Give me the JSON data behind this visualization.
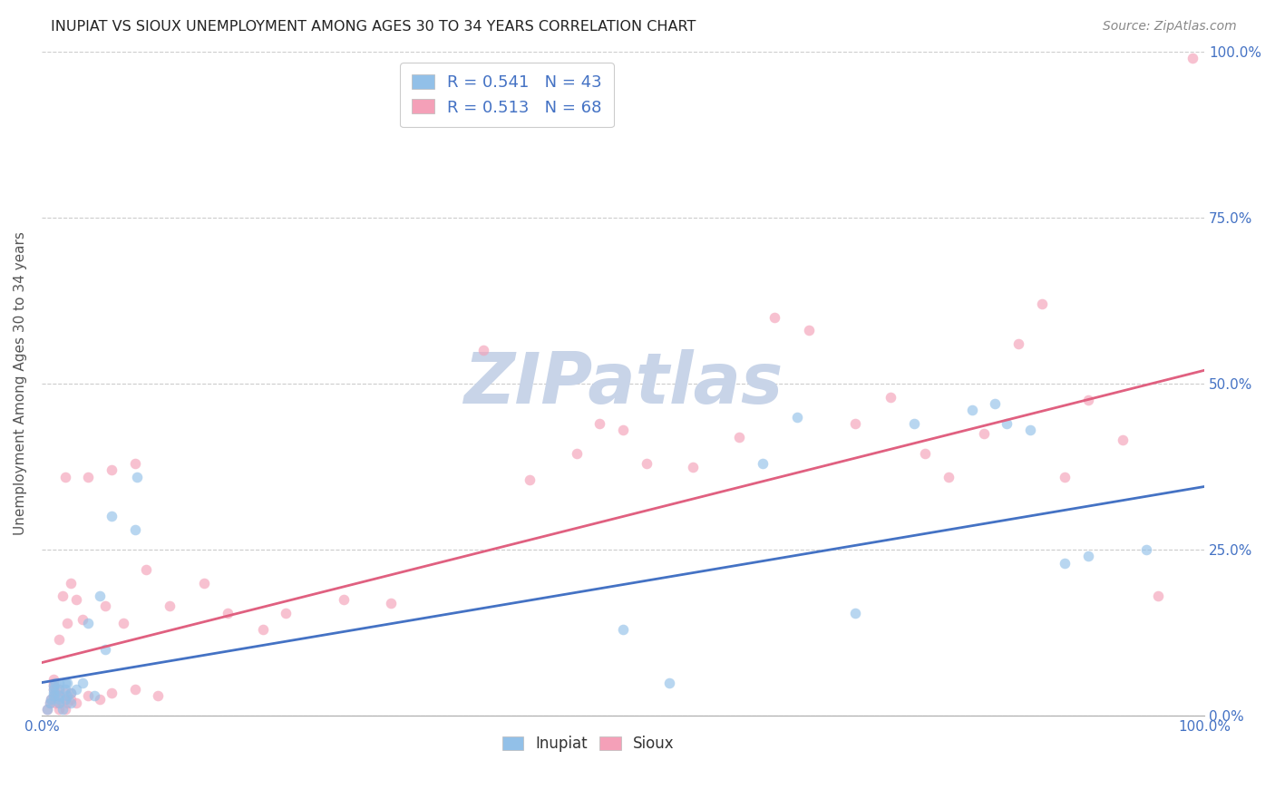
{
  "title": "INUPIAT VS SIOUX UNEMPLOYMENT AMONG AGES 30 TO 34 YEARS CORRELATION CHART",
  "source": "Source: ZipAtlas.com",
  "ylabel": "Unemployment Among Ages 30 to 34 years",
  "xlim": [
    0,
    1
  ],
  "ylim": [
    0,
    1
  ],
  "xtick_vals": [
    0,
    1.0
  ],
  "xtick_labels": [
    "0.0%",
    "100.0%"
  ],
  "ytick_vals": [
    0,
    0.25,
    0.5,
    0.75,
    1.0
  ],
  "right_ytick_labels": [
    "0.0%",
    "25.0%",
    "50.0%",
    "75.0%",
    "100.0%"
  ],
  "inupiat_color": "#92c0e8",
  "sioux_color": "#f4a0b8",
  "line_inupiat_color": "#4472c4",
  "line_sioux_color": "#e06080",
  "legend_label_inupiat": "R = 0.541   N = 43",
  "legend_label_sioux": "R = 0.513   N = 68",
  "watermark_text": "ZIPatlas",
  "watermark_color": "#c8d4e8",
  "grid_color": "#cccccc",
  "background_color": "#ffffff",
  "title_color": "#222222",
  "source_color": "#888888",
  "ylabel_color": "#555555",
  "right_tick_color": "#4472c4",
  "xtick_color": "#4472c4",
  "legend_text_color": "#4472c4",
  "bottom_legend_color": "#333333",
  "marker_size": 70,
  "marker_alpha": 0.65,
  "inupiat_x": [
    0.005,
    0.007,
    0.008,
    0.01,
    0.01,
    0.01,
    0.01,
    0.012,
    0.015,
    0.015,
    0.015,
    0.015,
    0.015,
    0.018,
    0.02,
    0.02,
    0.02,
    0.022,
    0.022,
    0.025,
    0.025,
    0.03,
    0.035,
    0.04,
    0.045,
    0.05,
    0.055,
    0.06,
    0.08,
    0.082,
    0.5,
    0.54,
    0.62,
    0.65,
    0.7,
    0.75,
    0.8,
    0.82,
    0.83,
    0.85,
    0.88,
    0.9,
    0.95
  ],
  "inupiat_y": [
    0.01,
    0.02,
    0.025,
    0.03,
    0.035,
    0.04,
    0.045,
    0.05,
    0.02,
    0.025,
    0.03,
    0.04,
    0.05,
    0.01,
    0.025,
    0.04,
    0.05,
    0.03,
    0.05,
    0.02,
    0.035,
    0.04,
    0.05,
    0.14,
    0.03,
    0.18,
    0.1,
    0.3,
    0.28,
    0.36,
    0.13,
    0.05,
    0.38,
    0.45,
    0.155,
    0.44,
    0.46,
    0.47,
    0.44,
    0.43,
    0.23,
    0.24,
    0.25
  ],
  "sioux_x": [
    0.005,
    0.007,
    0.008,
    0.01,
    0.01,
    0.01,
    0.01,
    0.01,
    0.012,
    0.012,
    0.015,
    0.015,
    0.015,
    0.015,
    0.015,
    0.018,
    0.02,
    0.02,
    0.02,
    0.02,
    0.022,
    0.022,
    0.025,
    0.025,
    0.025,
    0.03,
    0.03,
    0.035,
    0.04,
    0.04,
    0.05,
    0.055,
    0.06,
    0.06,
    0.07,
    0.08,
    0.08,
    0.09,
    0.1,
    0.11,
    0.14,
    0.16,
    0.19,
    0.21,
    0.26,
    0.3,
    0.38,
    0.42,
    0.46,
    0.48,
    0.5,
    0.52,
    0.56,
    0.6,
    0.63,
    0.66,
    0.7,
    0.73,
    0.76,
    0.78,
    0.81,
    0.84,
    0.86,
    0.88,
    0.9,
    0.93,
    0.96,
    0.99
  ],
  "sioux_y": [
    0.01,
    0.02,
    0.025,
    0.03,
    0.04,
    0.045,
    0.05,
    0.055,
    0.02,
    0.035,
    0.01,
    0.02,
    0.03,
    0.04,
    0.115,
    0.18,
    0.01,
    0.025,
    0.035,
    0.36,
    0.02,
    0.14,
    0.025,
    0.035,
    0.2,
    0.02,
    0.175,
    0.145,
    0.03,
    0.36,
    0.025,
    0.165,
    0.035,
    0.37,
    0.14,
    0.04,
    0.38,
    0.22,
    0.03,
    0.165,
    0.2,
    0.155,
    0.13,
    0.155,
    0.175,
    0.17,
    0.55,
    0.355,
    0.395,
    0.44,
    0.43,
    0.38,
    0.375,
    0.42,
    0.6,
    0.58,
    0.44,
    0.48,
    0.395,
    0.36,
    0.425,
    0.56,
    0.62,
    0.36,
    0.475,
    0.415,
    0.18,
    0.99
  ],
  "line_inupiat_slope": 0.295,
  "line_inupiat_intercept": 0.05,
  "line_sioux_slope": 0.44,
  "line_sioux_intercept": 0.08
}
